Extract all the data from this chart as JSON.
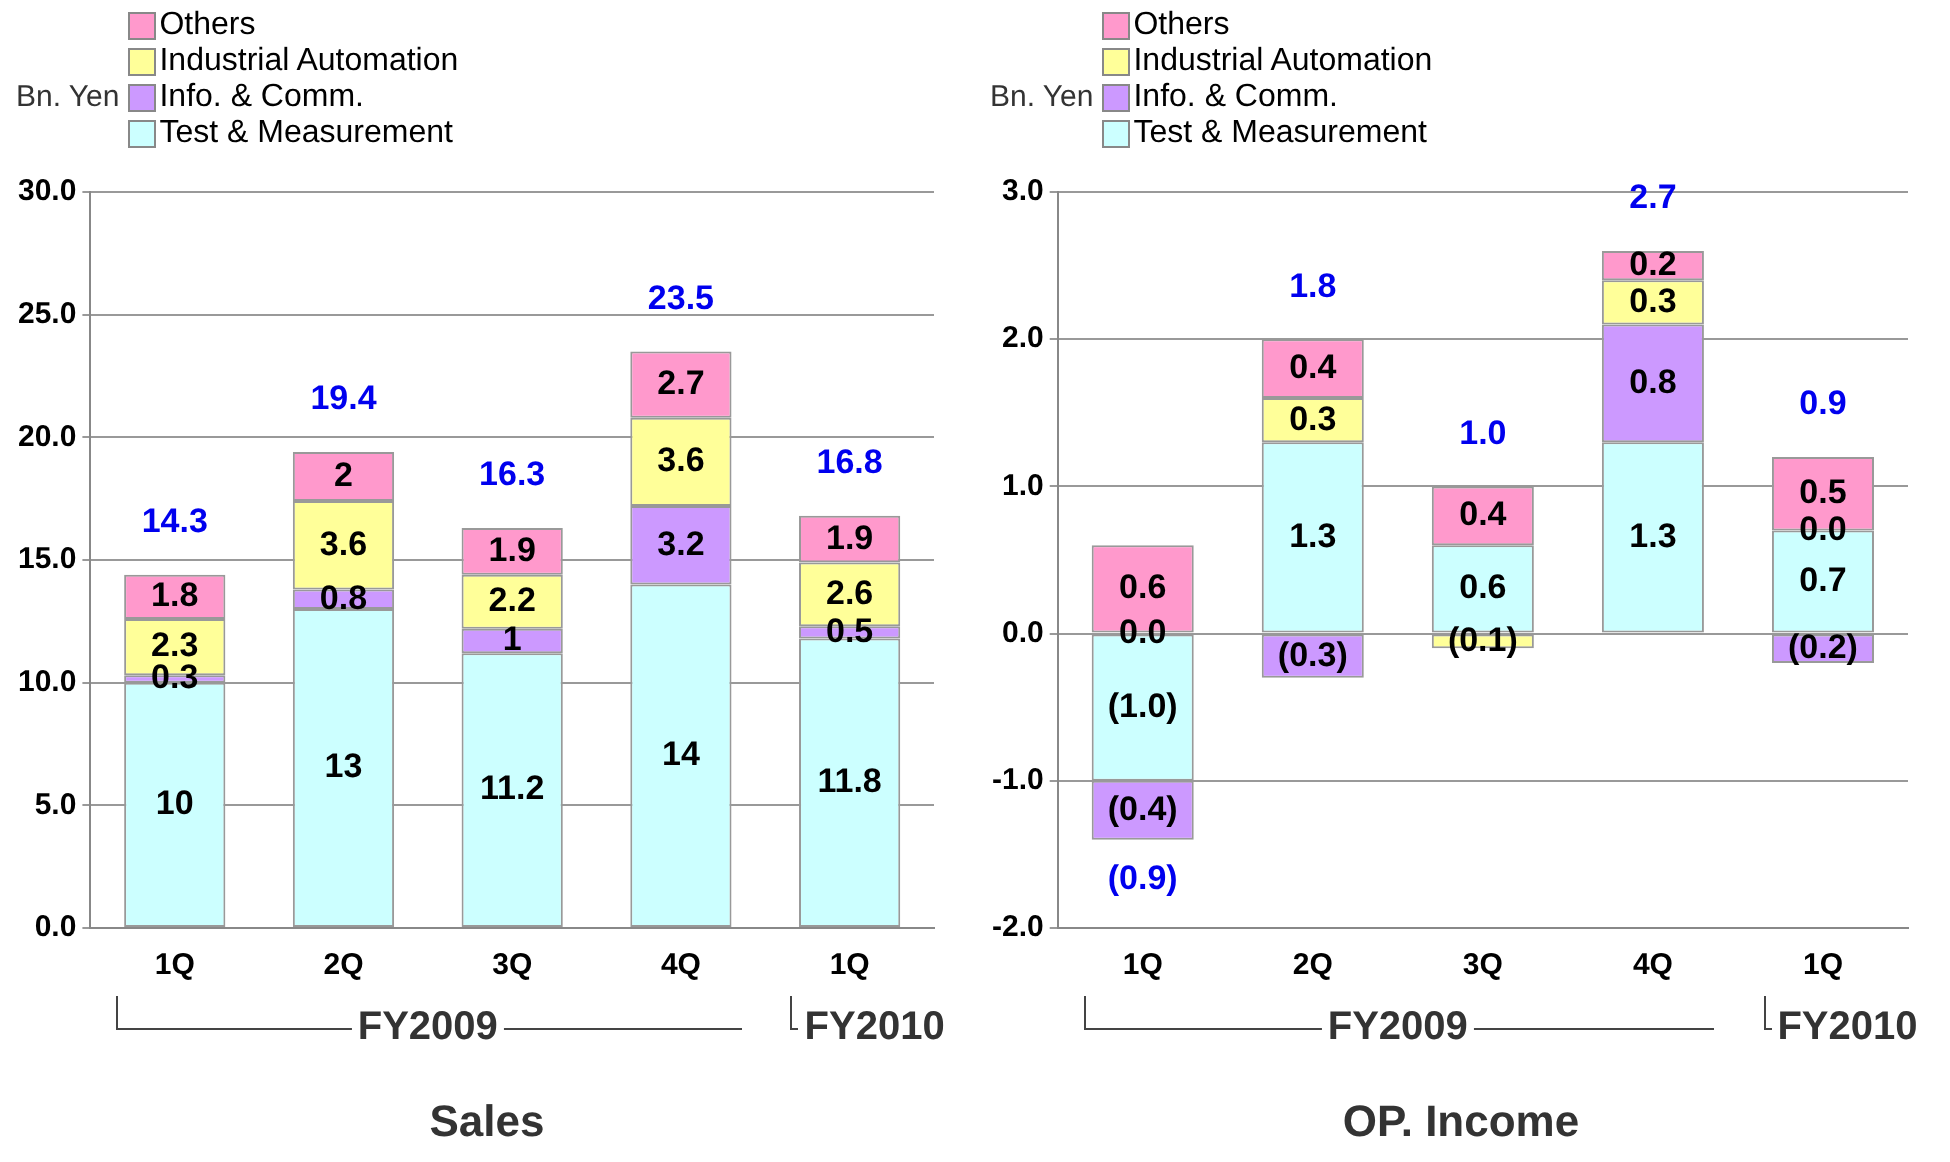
{
  "chart_data": [
    {
      "type": "bar",
      "stacked": true,
      "ylabel": "Bn. Yen",
      "xlabel": "Sales",
      "categories": [
        "1Q",
        "2Q",
        "3Q",
        "4Q",
        "1Q"
      ],
      "series": [
        {
          "name": "Test & Measurement",
          "color": "#ccffff",
          "values": [
            10,
            13,
            11.2,
            14,
            11.8
          ]
        },
        {
          "name": "Info. & Comm.",
          "color": "#cc99ff",
          "values": [
            0.3,
            0.8,
            1,
            3.2,
            0.5
          ]
        },
        {
          "name": "Industrial Automation",
          "color": "#ffff99",
          "values": [
            2.3,
            3.6,
            2.2,
            3.6,
            2.6
          ]
        },
        {
          "name": "Others",
          "color": "#ff99cc",
          "values": [
            1.8,
            2,
            1.9,
            2.7,
            1.9
          ]
        }
      ],
      "data_labels": true,
      "totals": [
        "14.3",
        "19.4",
        "16.3",
        "23.5",
        "16.8"
      ],
      "ylim": [
        0,
        30
      ],
      "yticks": [
        {
          "value": 0,
          "label": "0.0"
        },
        {
          "value": 5,
          "label": "5.0"
        },
        {
          "value": 10,
          "label": "10.0"
        },
        {
          "value": 15,
          "label": "15.0"
        },
        {
          "value": 20,
          "label": "20.0"
        },
        {
          "value": 25,
          "label": "25.0"
        },
        {
          "value": 30,
          "label": "30.0"
        }
      ],
      "grid": "y",
      "legend": "top left",
      "annotations": [
        "FY2009",
        "FY2010"
      ]
    },
    {
      "type": "bar",
      "stacked": true,
      "ylabel": "Bn. Yen",
      "xlabel": "OP. Income",
      "categories": [
        "1Q",
        "2Q",
        "3Q",
        "4Q",
        "1Q"
      ],
      "series": [
        {
          "name": "Test & Measurement",
          "color": "#ccffff",
          "values": [
            -1.0,
            1.3,
            0.6,
            1.3,
            0.7
          ],
          "value_labels": [
            "(1.0)",
            "1.3",
            "0.6",
            "1.3",
            "0.7"
          ]
        },
        {
          "name": "Info. & Comm.",
          "color": "#cc99ff",
          "values": [
            -0.4,
            -0.3,
            0.0,
            0.8,
            -0.2
          ],
          "value_labels": [
            "(0.4)",
            "(0.3)",
            null,
            "0.8",
            "(0.2)"
          ]
        },
        {
          "name": "Industrial Automation",
          "color": "#ffff99",
          "values": [
            0.0,
            0.3,
            -0.1,
            0.3,
            0.0
          ],
          "value_labels": [
            "0.0",
            "0.3",
            "(0.1)",
            "0.3",
            "0.0"
          ]
        },
        {
          "name": "Others",
          "color": "#ff99cc",
          "values": [
            0.6,
            0.4,
            0.4,
            0.2,
            0.5
          ],
          "value_labels": [
            "0.6",
            "0.4",
            "0.4",
            "0.2",
            "0.5"
          ]
        }
      ],
      "totals": [
        "(0.9)",
        "1.8",
        "1.0",
        "2.7",
        "0.9"
      ],
      "ylim": [
        -2,
        3
      ],
      "yticks": [
        {
          "value": -2,
          "label": "-2.0"
        },
        {
          "value": -1,
          "label": "-1.0"
        },
        {
          "value": 0,
          "label": "0.0"
        },
        {
          "value": 1,
          "label": "1.0"
        },
        {
          "value": 2,
          "label": "2.0"
        },
        {
          "value": 3,
          "label": "3.0"
        }
      ],
      "grid": "y",
      "legend": "top left",
      "annotations": [
        "FY2009",
        "FY2010"
      ]
    }
  ]
}
